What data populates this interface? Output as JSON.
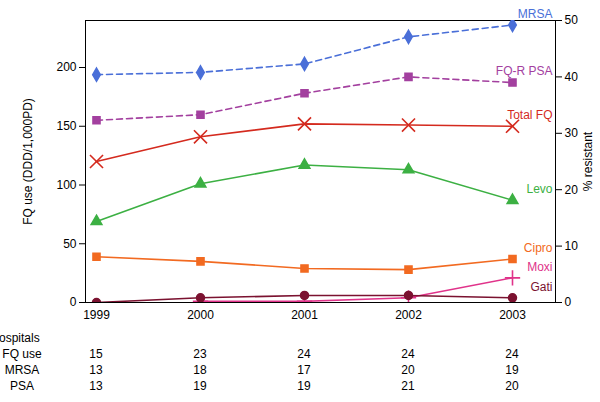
{
  "chart_data": {
    "type": "line",
    "categories": [
      "1999",
      "2000",
      "2001",
      "2002",
      "2003"
    ],
    "ylabel": "FQ use (DDD/1,000PD)",
    "y2label": "% resistant",
    "ylim": [
      0,
      240
    ],
    "yticks": [
      0,
      50,
      100,
      150,
      200
    ],
    "y2lim": [
      0,
      50
    ],
    "y2ticks": [
      0,
      10,
      20,
      30,
      40,
      50
    ],
    "series": [
      {
        "name": "MRSA",
        "color": "#4a6fd8",
        "values": [
          40.4,
          40.8,
          42.3,
          47.1,
          49.2
        ],
        "marker": "diamond",
        "line_style": "dashed",
        "axis": "y2"
      },
      {
        "name": "FQ-R PSA",
        "color": "#a3409f",
        "values": [
          32.3,
          33.3,
          37.1,
          40.0,
          39.0
        ],
        "marker": "square",
        "line_style": "dashed",
        "axis": "y2"
      },
      {
        "name": "Total FQ",
        "color": "#d42a1e",
        "values": [
          120,
          141,
          152,
          151,
          150
        ],
        "marker": "times",
        "line_style": "solid",
        "axis": "y"
      },
      {
        "name": "Levo",
        "color": "#3cb043",
        "values": [
          69,
          101,
          117,
          113,
          87
        ],
        "marker": "triangle",
        "line_style": "solid",
        "axis": "y"
      },
      {
        "name": "Cipro",
        "color": "#f26a21",
        "values": [
          39,
          35,
          29,
          28,
          37
        ],
        "marker": "square",
        "line_style": "solid",
        "axis": "y"
      },
      {
        "name": "Moxi",
        "color": "#e0338a",
        "values": [
          null,
          1,
          1,
          4,
          21
        ],
        "marker": "plus",
        "line_style": "solid",
        "axis": "y"
      },
      {
        "name": "Gati",
        "color": "#7b1230",
        "values": [
          0,
          4,
          6,
          6,
          4
        ],
        "marker": "circle",
        "line_style": "solid",
        "axis": "y"
      }
    ],
    "hospitals": {
      "title": "No. hospitals",
      "rows": [
        {
          "label": "FQ use",
          "values": [
            15,
            23,
            24,
            24,
            24
          ]
        },
        {
          "label": "MRSA",
          "values": [
            13,
            18,
            17,
            20,
            19
          ]
        },
        {
          "label": "PSA",
          "values": [
            13,
            19,
            19,
            21,
            20
          ]
        }
      ]
    }
  }
}
